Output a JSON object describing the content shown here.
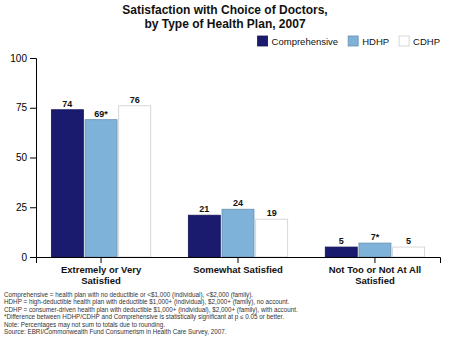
{
  "chart_data": {
    "type": "bar",
    "title": "Satisfaction with Choice of Doctors,\nby Type of Health Plan, 2007",
    "categories": [
      "Extremely or Very\nSatisfied",
      "Somewhat Satisfied",
      "Not Too or Not At All\nSatisfied"
    ],
    "series": [
      {
        "name": "Comprehensive",
        "color": "#1a1a6e",
        "values": [
          74,
          21,
          5
        ]
      },
      {
        "name": "HDHP",
        "color": "#7fb2d8",
        "values": [
          69,
          24,
          7
        ],
        "value_labels": [
          "69*",
          "24",
          "7*"
        ]
      },
      {
        "name": "CDHP",
        "color": "#ffffff",
        "values": [
          76,
          19,
          5
        ]
      }
    ],
    "ylim": [
      0,
      100
    ],
    "yticks": [
      0,
      25,
      50,
      75,
      100
    ],
    "grid": false,
    "legend": "upper right",
    "data_labels": true,
    "annotations": [
      "Comprehensive = health plan with no deductible or <$1,000 (individual), <$2,000 (family).",
      "HDHP = high-deductible health plan with deductible $1,000+ (individual), $2,000+ (family), no account.",
      "CDHP = consumer-driven health plan with deductible $1,000+ (individual), $2,000+ (family), with account.",
      "*Difference between HDHP/CDHP and Comprehensive is statistically significant at p ≤ 0.05 or better.",
      "Note: Percentages may not sum to totals due to rounding.",
      "Source: EBRI/Commonwealth Fund Consumerism in Health Care Survey, 2007."
    ]
  }
}
